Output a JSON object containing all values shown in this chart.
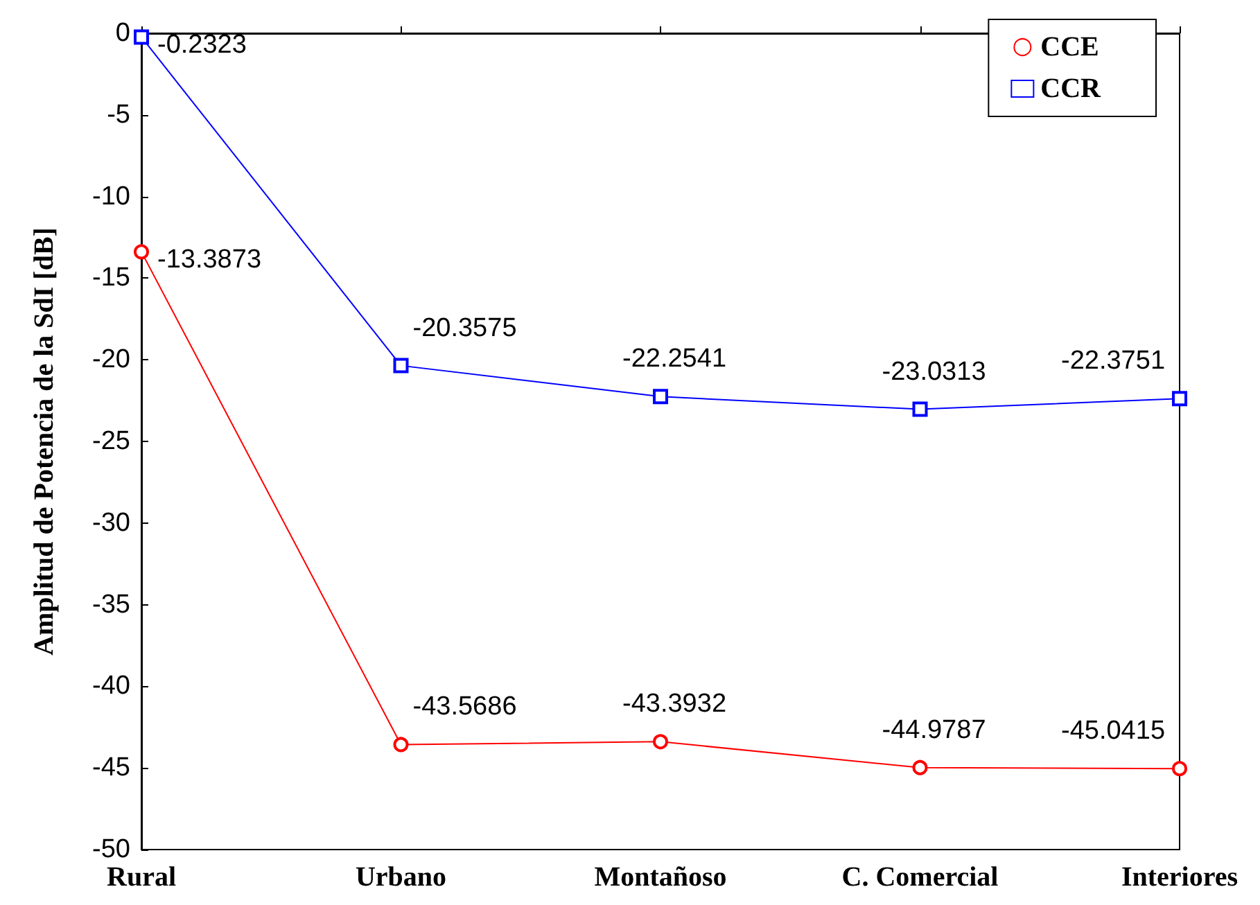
{
  "chart_data": {
    "type": "line",
    "ylabel": "Amplitud de Potencia de la SdI [dB]",
    "categories": [
      "Rural",
      "Urbano",
      "Montañoso",
      "C. Comercial",
      "Interiores"
    ],
    "series": [
      {
        "name": "CCE",
        "color": "#ff0000",
        "marker": "circle",
        "values": [
          -13.3873,
          -43.5686,
          -43.3932,
          -44.9787,
          -45.0415
        ]
      },
      {
        "name": "CCR",
        "color": "#0000ff",
        "marker": "square",
        "values": [
          -0.2323,
          -20.3575,
          -22.2541,
          -23.0313,
          -22.3751
        ]
      }
    ],
    "ylim": [
      -50,
      0
    ],
    "yticks": [
      -50,
      -45,
      -40,
      -35,
      -30,
      -25,
      -20,
      -15,
      -10,
      -5,
      0
    ],
    "data_labels": true,
    "grid": false,
    "legend": "top right"
  }
}
